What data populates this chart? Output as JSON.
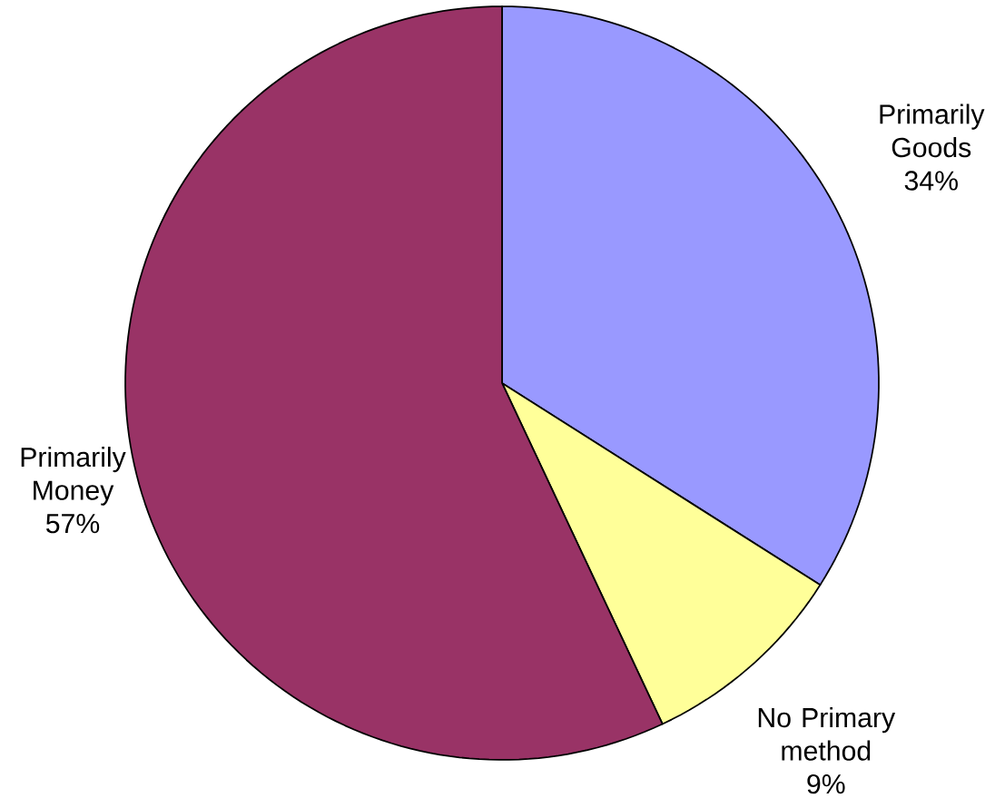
{
  "chart_data": {
    "type": "pie",
    "categories": [
      "Primarily Goods",
      "No Primary method",
      "Primarily Money"
    ],
    "values": [
      34,
      9,
      57
    ],
    "value_labels": [
      "34%",
      "9%",
      "57%"
    ],
    "colors": [
      "#9999ff",
      "#ffff99",
      "#993366"
    ]
  }
}
